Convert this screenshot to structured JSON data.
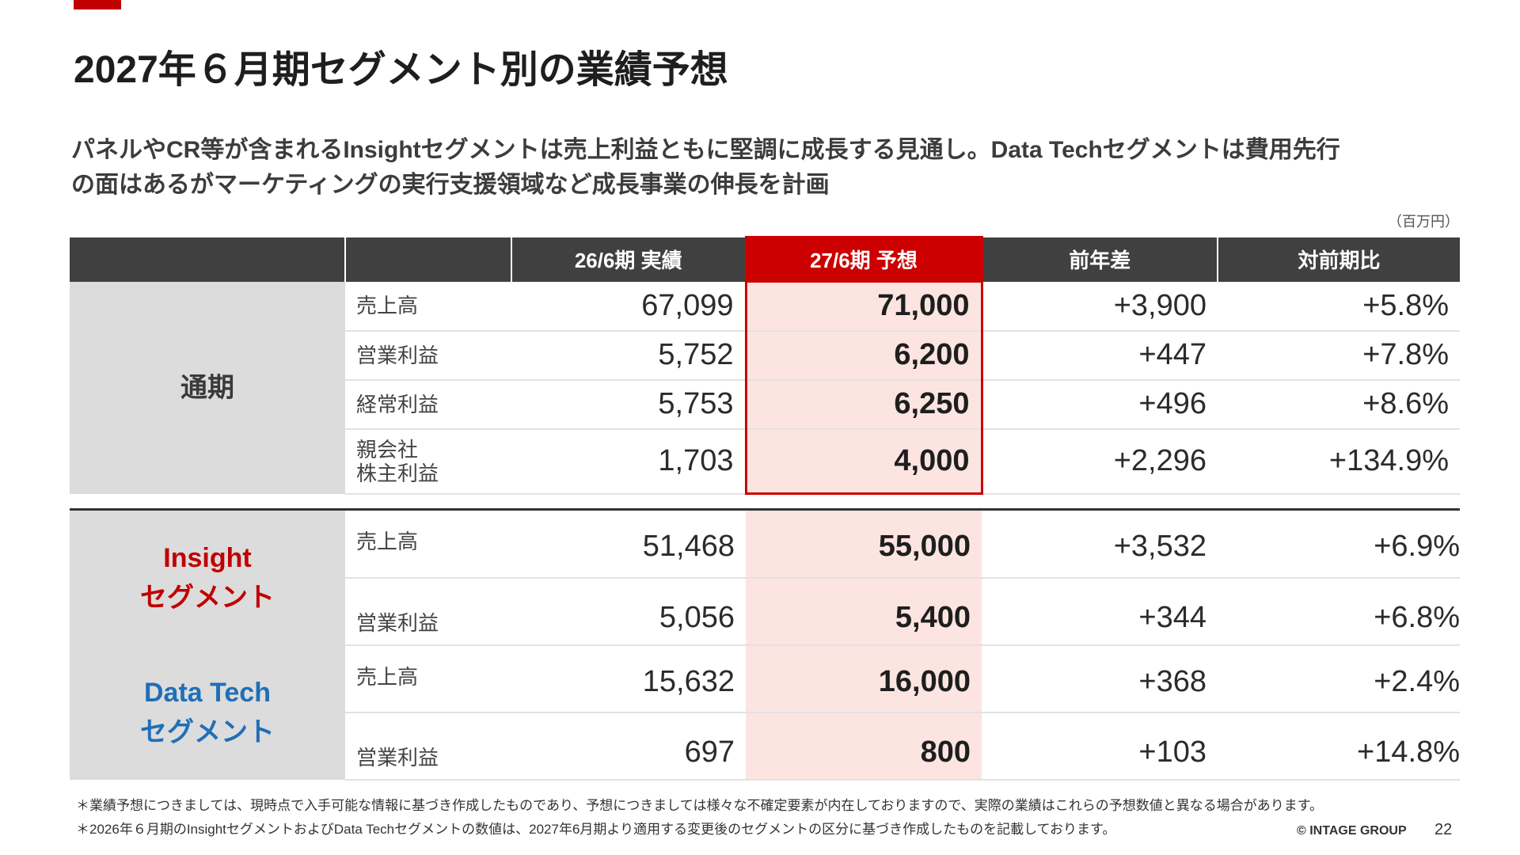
{
  "title": "2027年６月期セグメント別の業績予想",
  "subtitle": [
    "パネルやCR等が含まれるInsightセグメントは売上利益ともに堅調に成長する見通し。Data Techセグメントは費用先行",
    "の面はあるがマーケティングの実行支援領域など成長事業の伸長を計画"
  ],
  "unit": "（百万円）",
  "table": {
    "headers": [
      "",
      "",
      "26/6期 実績",
      "27/6期 予想",
      "前年差",
      "対前期比"
    ],
    "segments": {
      "annual": [
        "通期"
      ],
      "insight": [
        "Insight",
        "セグメント"
      ],
      "datatech": [
        "Data Tech",
        "セグメント"
      ]
    },
    "rows": [
      {
        "item": [
          "売上高"
        ],
        "actual": "67,099",
        "forecast": "71,000",
        "diff": "+3,900",
        "ratio": "+5.8%"
      },
      {
        "item": [
          "営業利益"
        ],
        "actual": "5,752",
        "forecast": "6,200",
        "diff": "+447",
        "ratio": "+7.8%"
      },
      {
        "item": [
          "経常利益"
        ],
        "actual": "5,753",
        "forecast": "6,250",
        "diff": "+496",
        "ratio": "+8.6%"
      },
      {
        "item": [
          "親会社",
          "株主利益"
        ],
        "actual": "1,703",
        "forecast": "4,000",
        "diff": "+2,296",
        "ratio": "+134.9%"
      },
      {
        "item": [
          "売上高"
        ],
        "actual": "51,468",
        "forecast": "55,000",
        "diff": "+3,532",
        "ratio": "+6.9%"
      },
      {
        "item": [
          "営業利益"
        ],
        "actual": "5,056",
        "forecast": "5,400",
        "diff": "+344",
        "ratio": "+6.8%"
      },
      {
        "item": [
          "売上高"
        ],
        "actual": "15,632",
        "forecast": "16,000",
        "diff": "+368",
        "ratio": "+2.4%"
      },
      {
        "item": [
          "営業利益"
        ],
        "actual": "697",
        "forecast": "800",
        "diff": "+103",
        "ratio": "+14.8%"
      }
    ]
  },
  "notes": [
    "＊業績予想につきましては、現時点で入手可能な情報に基づき作成したものであり、予想につきましては様々な不確定要素が内在しておりますので、実際の業績はこれらの予想数値と異なる場合があります。",
    "＊2026年６月期のInsightセグメントおよびData Techセグメントの数値は、2027年6月期より適用する変更後のセグメントの区分に基づき作成したものを記載しております。"
  ],
  "copyright": "© INTAGE GROUP",
  "page_number": "22",
  "colors": {
    "accent": "#cc0000",
    "header_bg": "#404040",
    "forecast_bg": "#fce4e0",
    "segment_bg": "#dcdcdc",
    "insight": "#c00000",
    "datatech": "#1f6fb8"
  }
}
